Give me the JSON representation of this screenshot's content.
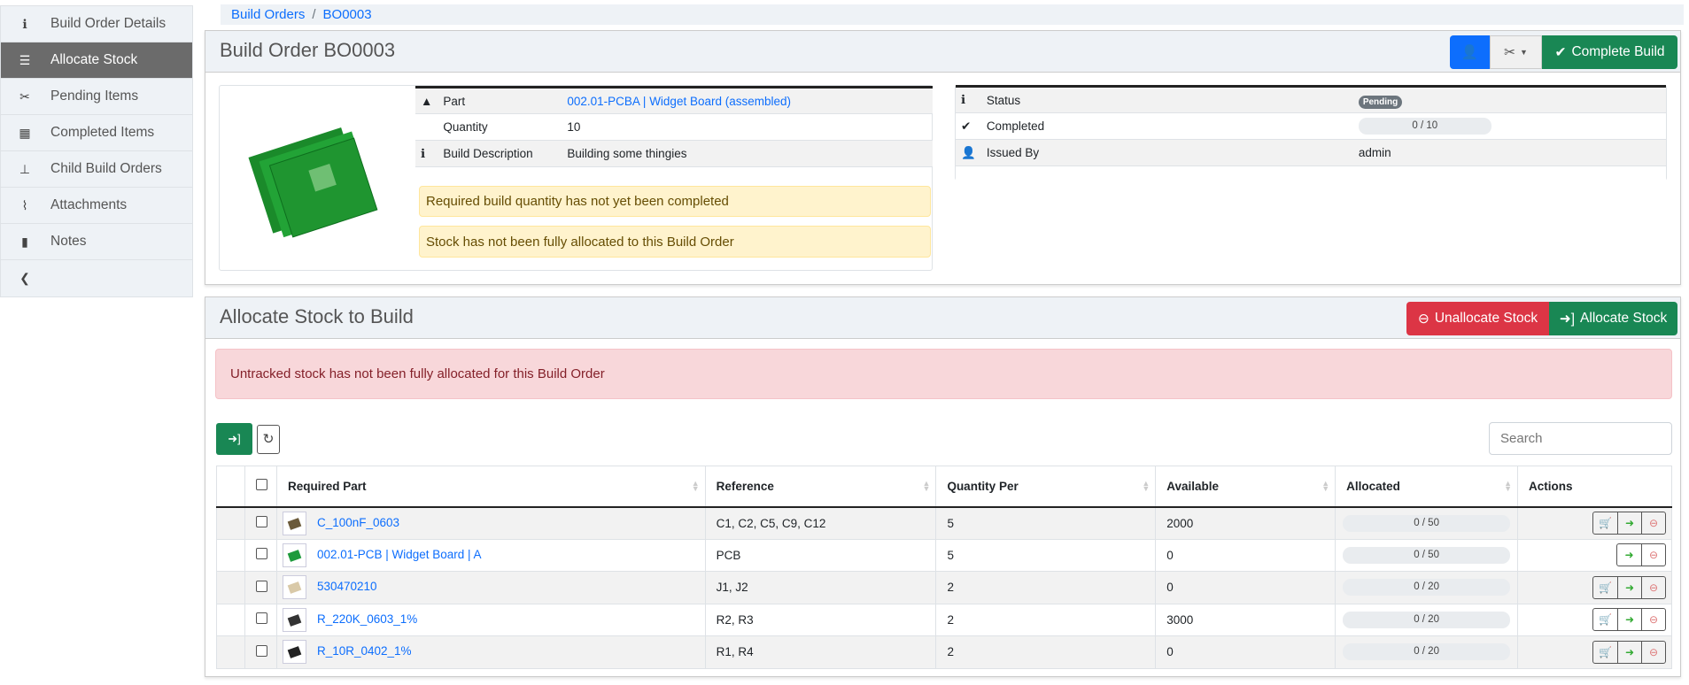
{
  "sidebar": {
    "items": [
      {
        "label": "Build Order Details",
        "icon": "info-circle-icon",
        "active": false
      },
      {
        "label": "Allocate Stock",
        "icon": "tasks-icon",
        "active": true
      },
      {
        "label": "Pending Items",
        "icon": "tools-icon",
        "active": false
      },
      {
        "label": "Completed Items",
        "icon": "boxes-icon",
        "active": false
      },
      {
        "label": "Child Build Orders",
        "icon": "sitemap-icon",
        "active": false
      },
      {
        "label": "Attachments",
        "icon": "paperclip-icon",
        "active": false
      },
      {
        "label": "Notes",
        "icon": "clipboard-icon",
        "active": false
      }
    ],
    "collapse_icon": "chevron-left-icon"
  },
  "breadcrumb": [
    "Build Orders",
    "BO0003"
  ],
  "header": {
    "title": "Build Order BO0003",
    "complete_label": "Complete Build"
  },
  "details": {
    "rows": [
      {
        "label": "Part",
        "value": "002.01-PCBA | Widget Board (assembled)"
      },
      {
        "label": "Quantity",
        "value": "10"
      },
      {
        "label": "Build Description",
        "value": "Building some thingies"
      }
    ],
    "alerts": [
      "Required build quantity has not yet been completed",
      "Stock has not been fully allocated to this Build Order"
    ]
  },
  "status": {
    "rows": [
      {
        "label": "Status",
        "value": "Pending"
      },
      {
        "label": "Completed",
        "value": "0 / 10",
        "progress": 0
      },
      {
        "label": "Issued By",
        "value": "admin"
      }
    ]
  },
  "allocate": {
    "title": "Allocate Stock to Build",
    "unallocate_label": "Unallocate Stock",
    "allocate_label": "Allocate Stock",
    "alert": "Untracked stock has not been fully allocated for this Build Order",
    "search_placeholder": "Search",
    "columns": [
      "Required Part",
      "Reference",
      "Quantity Per",
      "Available",
      "Allocated",
      "Actions"
    ],
    "rows": [
      {
        "part": "C_100nF_0603",
        "reference": "C1, C2, C5, C9, C12",
        "qty": "5",
        "available": "2000",
        "allocated": "0 / 50",
        "buy": true,
        "thumb": "#6b5a3a"
      },
      {
        "part": "002.01-PCB | Widget Board | A",
        "reference": "PCB",
        "qty": "5",
        "available": "0",
        "allocated": "0 / 50",
        "buy": false,
        "thumb": "#1e9a3c"
      },
      {
        "part": "530470210",
        "reference": "J1, J2",
        "qty": "2",
        "available": "0",
        "allocated": "0 / 20",
        "buy": true,
        "thumb": "#d9c9a8"
      },
      {
        "part": "R_220K_0603_1%",
        "reference": "R2, R3",
        "qty": "2",
        "available": "3000",
        "allocated": "0 / 20",
        "buy": true,
        "thumb": "#333"
      },
      {
        "part": "R_10R_0402_1%",
        "reference": "R1, R4",
        "qty": "2",
        "available": "0",
        "allocated": "0 / 20",
        "buy": true,
        "thumb": "#222"
      }
    ]
  },
  "colors": {
    "primary": "#0d6efd",
    "success": "#198754",
    "danger": "#dc3545",
    "sidebar_active": "#6b6b6b"
  }
}
